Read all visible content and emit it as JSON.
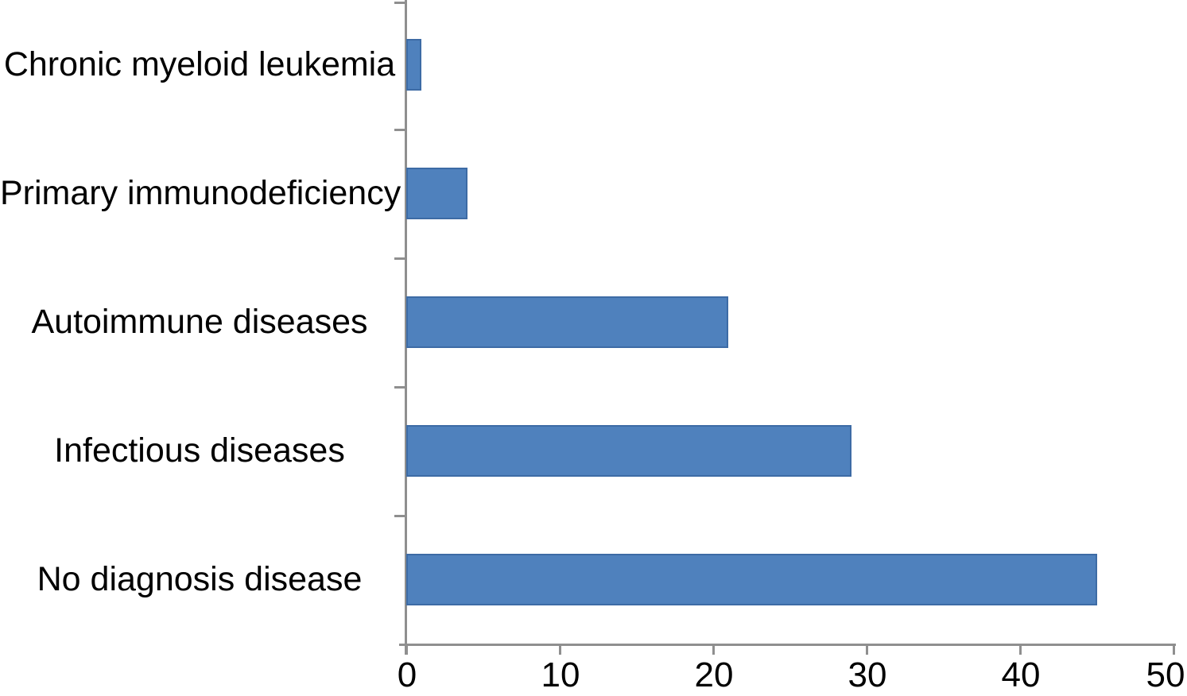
{
  "chart_data": {
    "type": "bar",
    "orientation": "horizontal",
    "title": "",
    "xlabel": "",
    "ylabel": "",
    "categories": [
      "Chronic myeloid leukemia",
      "Primary immunodeficiency",
      "Autoimmune diseases",
      "Infectious diseases",
      "No diagnosis disease"
    ],
    "values": [
      1,
      4,
      21,
      29,
      45
    ],
    "xlim": [
      0,
      50
    ],
    "xticks": [
      0,
      10,
      20,
      30,
      40,
      50
    ],
    "xtick_labels": [
      "0",
      "10",
      "20",
      "30",
      "40",
      "50"
    ],
    "grid": false,
    "legend_position": "none",
    "bar_color": "#4f81bd",
    "bar_border_color": "#3d6ba5",
    "axis_color": "#8f8f8f",
    "text_color": "#000000"
  }
}
